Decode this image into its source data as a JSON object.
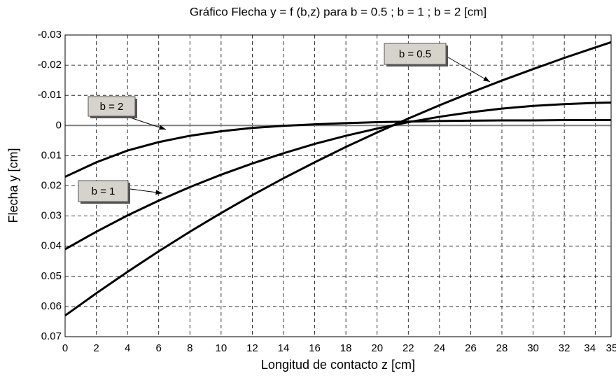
{
  "chart_data": {
    "type": "line",
    "title": "Gráfico Flecha y = f (b,z) para b = 0.5 ;  b = 1 ; b = 2  [cm]",
    "xlabel": "Longitud de contacto z  [cm]",
    "ylabel": "Flecha y  [cm]",
    "x": [
      0,
      2,
      4,
      6,
      8,
      10,
      12,
      14,
      16,
      18,
      20,
      22,
      24,
      26,
      28,
      30,
      32,
      34,
      35
    ],
    "series": [
      {
        "name": "b = 0.5",
        "color": "#000000",
        "values": [
          0.063,
          0.0556,
          0.0485,
          0.0417,
          0.0352,
          0.029,
          0.0231,
          0.0175,
          0.0122,
          0.0071,
          0.0023,
          -0.0023,
          -0.0067,
          -0.0109,
          -0.0149,
          -0.0187,
          -0.0224,
          -0.0259,
          -0.0276
        ]
      },
      {
        "name": "b = 2",
        "color": "#000000",
        "values": [
          0.017,
          0.0122,
          0.0083,
          0.0055,
          0.0034,
          0.0019,
          0.0008,
          0.0001,
          -0.0004,
          -0.0008,
          -0.0011,
          -0.0013,
          -0.0015,
          -0.0016,
          -0.0017,
          -0.0017,
          -0.0018,
          -0.0018,
          -0.0018
        ]
      },
      {
        "name": "b = 1",
        "color": "#000000",
        "values": [
          0.041,
          0.0352,
          0.0298,
          0.0249,
          0.0204,
          0.0163,
          0.0126,
          0.0092,
          0.0061,
          0.0034,
          0.001,
          -0.0011,
          -0.0029,
          -0.0044,
          -0.0056,
          -0.0065,
          -0.0071,
          -0.0075,
          -0.0076
        ]
      }
    ],
    "xlim": [
      0,
      35
    ],
    "xticks": [
      0,
      2,
      4,
      6,
      8,
      10,
      12,
      14,
      16,
      18,
      20,
      22,
      24,
      26,
      28,
      30,
      32,
      34,
      35
    ],
    "ylim": [
      0.07,
      -0.03
    ],
    "yticks": [
      -0.03,
      -0.02,
      -0.01,
      0,
      0.01,
      0.02,
      0.03,
      0.04,
      0.05,
      0.06,
      0.07
    ],
    "grid": true
  }
}
